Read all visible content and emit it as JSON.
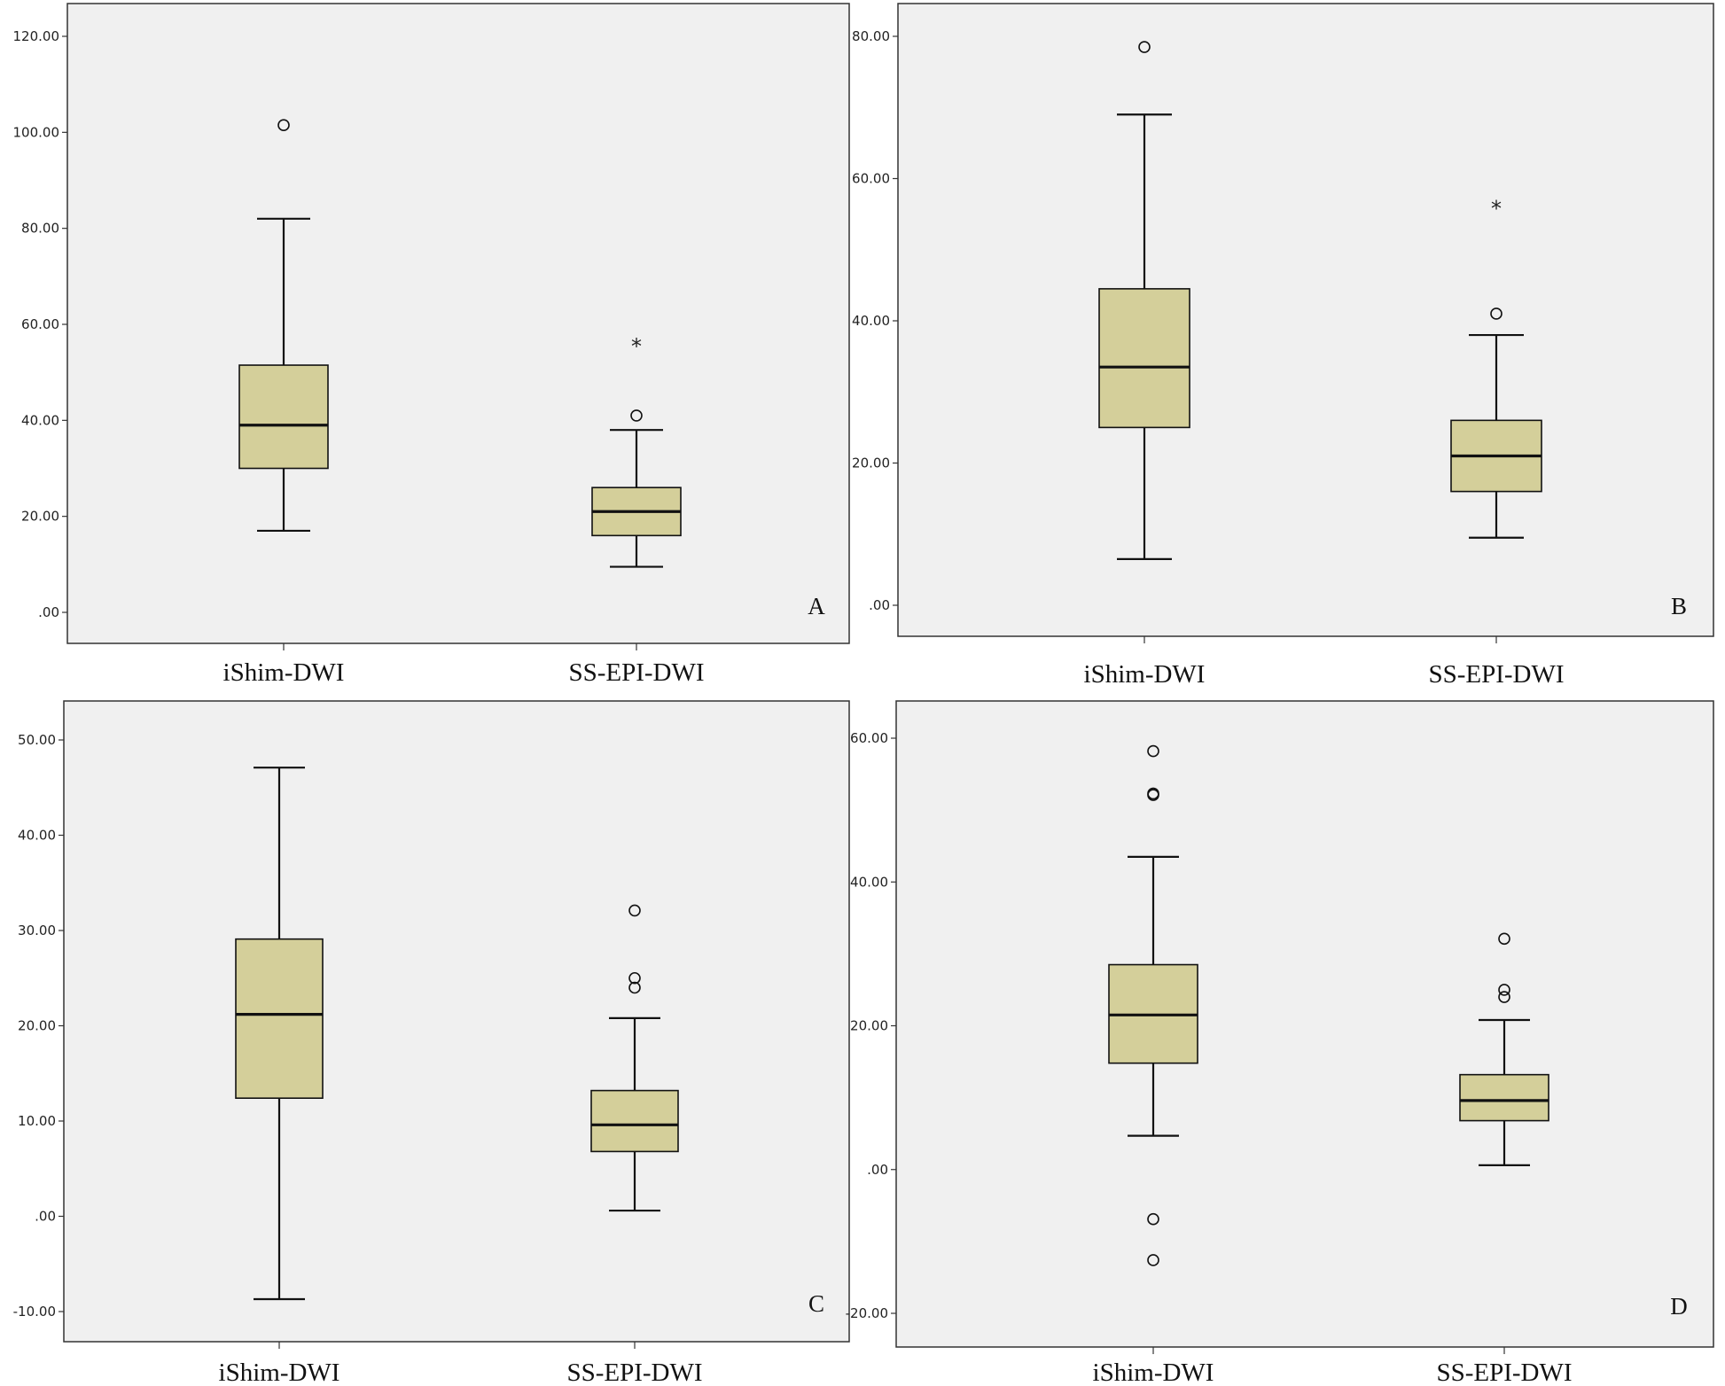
{
  "figure": {
    "colors": {
      "plot_background": "#f0f0f0",
      "box_fill": "#d4cf9a",
      "line": "#111111",
      "frame": "#333333"
    }
  },
  "chart_data": [
    {
      "type": "box",
      "panel_label": "A",
      "categories": [
        "iShim-DWI",
        "SS-EPI-DWI"
      ],
      "ylim": [
        0,
        120
      ],
      "yticks": [
        0,
        20,
        40,
        60,
        80,
        100,
        120
      ],
      "ytick_labels": [
        ".00",
        "20.00",
        "40.00",
        "60.00",
        "80.00",
        "100.00",
        "120.00"
      ],
      "boxes": [
        {
          "category": "iShim-DWI",
          "min": 17,
          "q1": 30,
          "median": 39,
          "q3": 51.5,
          "max": 82,
          "outliers": [
            101.5
          ],
          "extremes": []
        },
        {
          "category": "SS-EPI-DWI",
          "min": 9.5,
          "q1": 16,
          "median": 21,
          "q3": 26,
          "max": 38,
          "outliers": [
            41
          ],
          "extremes": [
            56.5
          ]
        }
      ]
    },
    {
      "type": "box",
      "panel_label": "B",
      "categories": [
        "iShim-DWI",
        "SS-EPI-DWI"
      ],
      "ylim": [
        0,
        80
      ],
      "yticks": [
        0,
        20,
        40,
        60,
        80
      ],
      "ytick_labels": [
        ".00",
        "20.00",
        "40.00",
        "60.00",
        "80.00"
      ],
      "boxes": [
        {
          "category": "iShim-DWI",
          "min": 6.5,
          "q1": 25,
          "median": 33.5,
          "q3": 44.5,
          "max": 69,
          "outliers": [
            78.5
          ],
          "extremes": []
        },
        {
          "category": "SS-EPI-DWI",
          "min": 9.5,
          "q1": 16,
          "median": 21,
          "q3": 26,
          "max": 38,
          "outliers": [
            41
          ],
          "extremes": [
            56.5
          ]
        }
      ]
    },
    {
      "type": "box",
      "panel_label": "C",
      "categories": [
        "iShim-DWI",
        "SS-EPI-DWI"
      ],
      "ylim": [
        -10,
        50
      ],
      "yticks": [
        -10,
        0,
        10,
        20,
        30,
        40,
        50
      ],
      "ytick_labels": [
        "-10.00",
        ".00",
        "10.00",
        "20.00",
        "30.00",
        "40.00",
        "50.00"
      ],
      "boxes": [
        {
          "category": "iShim-DWI",
          "min": -8.7,
          "q1": 12.4,
          "median": 21.2,
          "q3": 29.1,
          "max": 47.1,
          "outliers": [],
          "extremes": []
        },
        {
          "category": "SS-EPI-DWI",
          "min": 0.6,
          "q1": 6.8,
          "median": 9.6,
          "q3": 13.2,
          "max": 20.8,
          "outliers": [
            24,
            25,
            32.1
          ],
          "extremes": []
        }
      ]
    },
    {
      "type": "box",
      "panel_label": "D",
      "categories": [
        "iShim-DWI",
        "SS-EPI-DWI"
      ],
      "ylim": [
        -20,
        60
      ],
      "yticks": [
        -20,
        0,
        20,
        40,
        60
      ],
      "ytick_labels": [
        "-20.00",
        ".00",
        "20.00",
        "40.00",
        "60.00"
      ],
      "boxes": [
        {
          "category": "iShim-DWI",
          "min": 4.7,
          "q1": 14.8,
          "median": 21.5,
          "q3": 28.5,
          "max": 43.5,
          "outliers": [
            58.2,
            52.3,
            52.1,
            -6.9,
            -12.6
          ],
          "extremes": []
        },
        {
          "category": "SS-EPI-DWI",
          "min": 0.6,
          "q1": 6.8,
          "median": 9.6,
          "q3": 13.2,
          "max": 20.8,
          "outliers": [
            24,
            25,
            32.1
          ],
          "extremes": []
        }
      ]
    }
  ]
}
